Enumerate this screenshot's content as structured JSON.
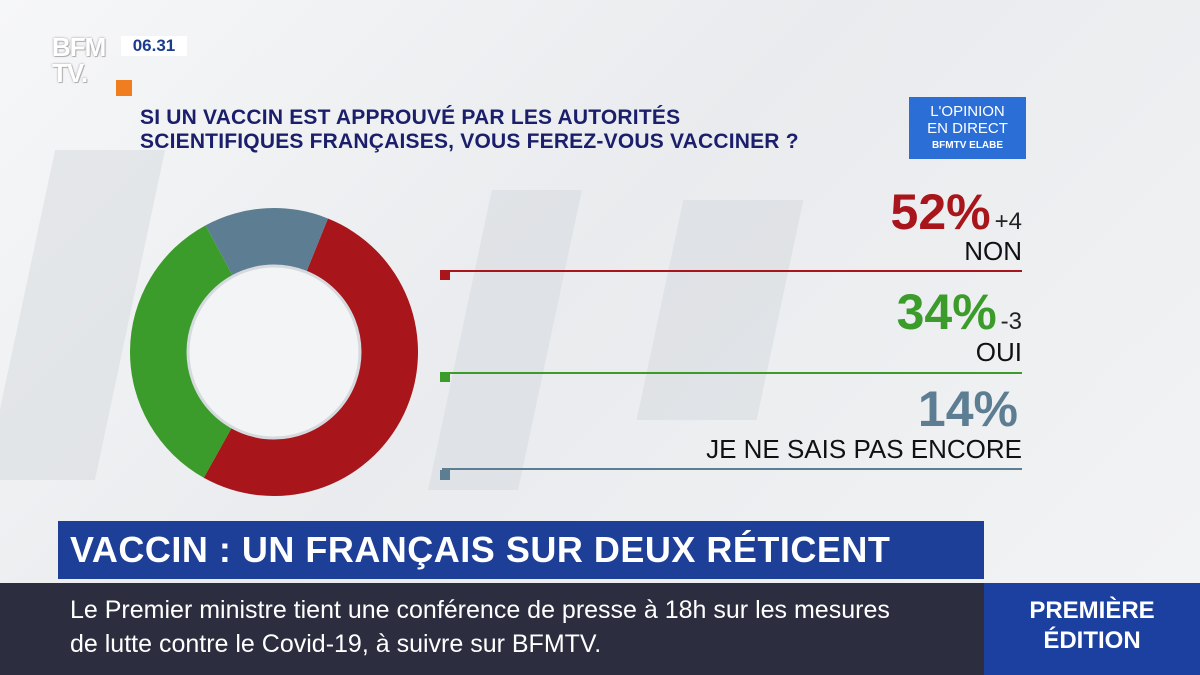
{
  "channel": {
    "logo_line1": "BFM",
    "logo_line2": "TV.",
    "clock": "06.31"
  },
  "question": {
    "line1": "SI UN VACCIN EST APPROUVÉ PAR LES AUTORITÉS",
    "line2": "SCIENTIFIQUES FRANÇAISES, VOUS FEREZ-VOUS VACCINER ?"
  },
  "badge": {
    "line1": "L'OPINION",
    "line2": "EN DIRECT",
    "line3": "BFMTV ELABE"
  },
  "chart_data": {
    "type": "pie",
    "donut": true,
    "categories": [
      "NON",
      "OUI",
      "JE NE SAIS PAS ENCORE"
    ],
    "values": [
      52,
      34,
      14
    ],
    "percent_labels": [
      "52%",
      "34%",
      "14%"
    ],
    "changes": [
      "+4",
      "-3",
      ""
    ],
    "colors": [
      "#a8151a",
      "#3c9c2b",
      "#5c7d92"
    ]
  },
  "headline": "VACCIN : UN FRANÇAIS SUR DEUX RÉTICENT",
  "ticker": {
    "line1": "Le Premier ministre tient une conférence de presse à 18h sur les mesures",
    "line2": "de lutte contre le Covid-19, à suivre sur BFMTV."
  },
  "edition": {
    "line1": "PREMIÈRE",
    "line2": "ÉDITION"
  }
}
